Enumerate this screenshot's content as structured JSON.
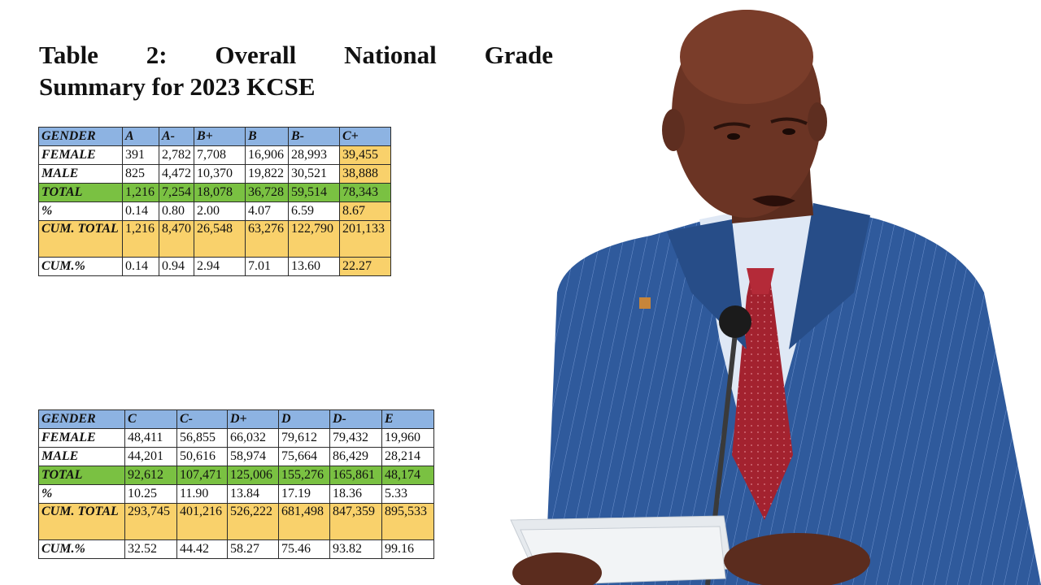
{
  "title": {
    "words_line1": [
      "Table",
      "2:",
      "Overall",
      "National",
      "Grade"
    ],
    "line2": "Summary for 2023 KCSE"
  },
  "table1": {
    "headers": [
      "GENDER",
      "A",
      "A-",
      "B+",
      "B",
      "B-",
      "C+"
    ],
    "rows": [
      {
        "label": "FEMALE",
        "values": [
          "391",
          "2,782",
          "7,708",
          "16,906",
          "28,993",
          "39,455"
        ]
      },
      {
        "label": "MALE",
        "values": [
          "825",
          "4,472",
          "10,370",
          "19,822",
          "30,521",
          "38,888"
        ]
      },
      {
        "label": "TOTAL",
        "values": [
          "1,216",
          "7,254",
          "18,078",
          "36,728",
          "59,514",
          "78,343"
        ]
      },
      {
        "label": "%",
        "values": [
          "0.14",
          "0.80",
          "2.00",
          "4.07",
          "6.59",
          "8.67"
        ]
      },
      {
        "label": "CUM. TOTAL",
        "values": [
          "1,216",
          "8,470",
          "26,548",
          "63,276",
          "122,790",
          "201,133"
        ]
      },
      {
        "label": "CUM.%",
        "values": [
          "0.14",
          "0.94",
          "2.94",
          "7.01",
          "13.60",
          "22.27"
        ]
      }
    ]
  },
  "table2": {
    "headers": [
      "GENDER",
      "C",
      "C-",
      "D+",
      "D",
      "D-",
      "E"
    ],
    "rows": [
      {
        "label": "FEMALE",
        "values": [
          "48,411",
          "56,855",
          "66,032",
          "79,612",
          "79,432",
          "19,960"
        ]
      },
      {
        "label": "MALE",
        "values": [
          "44,201",
          "50,616",
          "58,974",
          "75,664",
          "86,429",
          "28,214"
        ]
      },
      {
        "label": "TOTAL",
        "values": [
          "92,612",
          "107,471",
          "125,006",
          "155,276",
          "165,861",
          "48,174"
        ]
      },
      {
        "label": "%",
        "values": [
          "10.25",
          "11.90",
          "13.84",
          "17.19",
          "18.36",
          "5.33"
        ]
      },
      {
        "label": "CUM. TOTAL",
        "values": [
          "293,745",
          "401,216",
          "526,222",
          "681,498",
          "847,359",
          "895,533"
        ]
      },
      {
        "label": "CUM.%",
        "values": [
          "32.52",
          "44.42",
          "58.27",
          "75.46",
          "93.82",
          "99.16"
        ]
      }
    ]
  },
  "colors": {
    "header_blue": "#8db3e2",
    "total_green": "#7ac142",
    "highlight_yellow": "#f9d16b",
    "suit_blue": "#2f5a9c",
    "tie_red": "#a3222f"
  }
}
